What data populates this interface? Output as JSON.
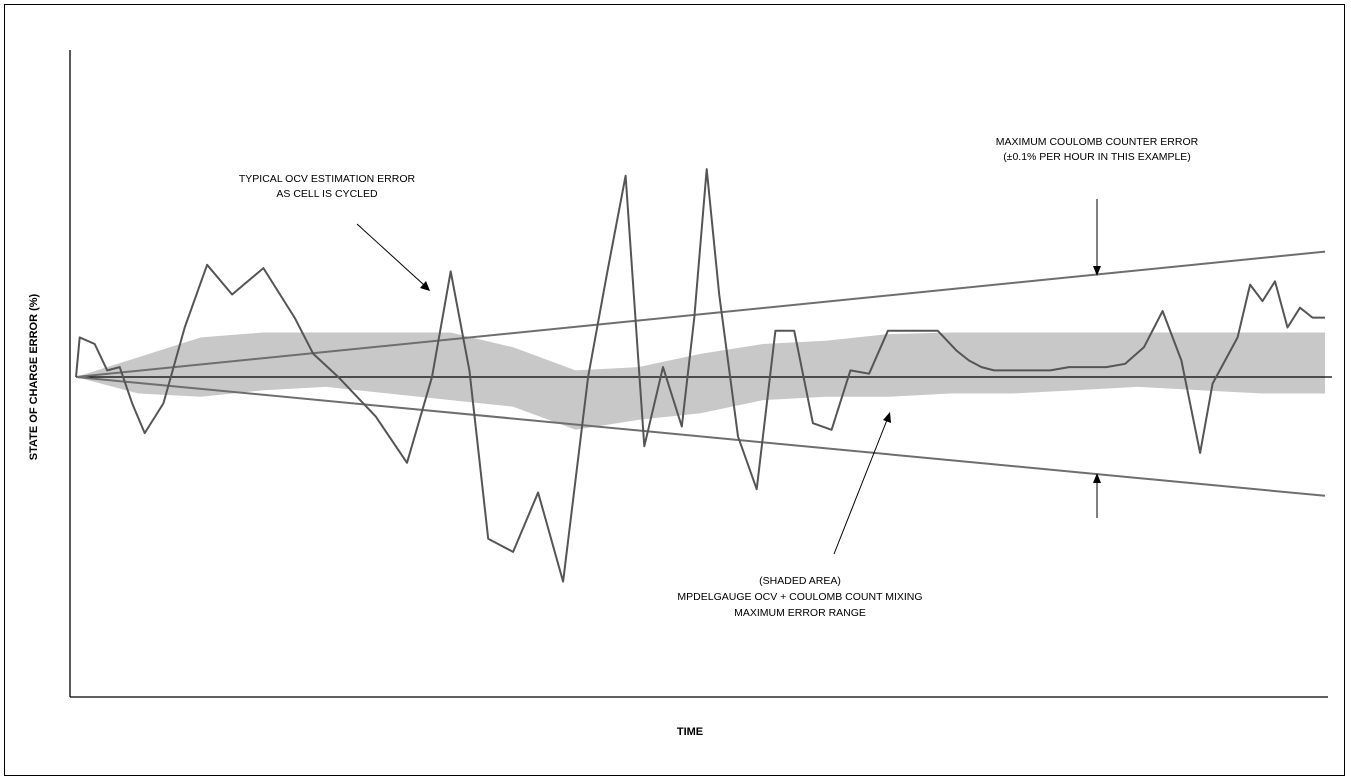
{
  "chart_data": {
    "type": "line",
    "xlabel": "TIME",
    "ylabel": "STATE OF CHARGE ERROR (%)",
    "xlim": [
      0,
      100
    ],
    "ylim": [
      -10,
      10
    ],
    "grid": false,
    "annotations": {
      "ocv": [
        "TYPICAL OCV ESTIMATION ERROR",
        "AS CELL IS CYCLED"
      ],
      "coulomb": [
        "MAXIMUM COULOMB COUNTER ERROR",
        "(±0.1% PER HOUR IN THIS EXAMPLE)"
      ],
      "shaded": [
        "(SHADED AREA)",
        "MPDELGAUGE OCV + COULOMB COUNT MIXING",
        "MAXIMUM ERROR RANGE"
      ]
    },
    "series": [
      {
        "role": "coulomb-error-bound",
        "color": "#6e6e6e",
        "x": [
          0,
          100
        ],
        "upper": [
          0,
          3.8
        ],
        "lower": [
          0,
          -3.6
        ]
      },
      {
        "role": "ocv-estimation-error",
        "color": "#555555",
        "x": [
          0,
          0.3,
          1.5,
          2.5,
          3.5,
          4.5,
          5.5,
          7,
          8.7,
          10.5,
          12.5,
          15,
          17.5,
          19,
          21,
          24,
          26.5,
          28.5,
          30,
          31.5,
          33,
          35,
          37,
          39,
          41,
          42.5,
          44,
          45.5,
          47,
          48.5,
          49.5,
          50.5,
          51.5,
          53,
          54.5,
          56,
          57.5,
          59,
          60.5,
          62,
          63.5,
          65,
          66.5,
          67.5,
          69,
          70.5,
          71.5,
          72.5,
          73.5,
          74.5,
          75.5,
          76.5,
          78,
          79.5,
          81,
          82.5,
          84,
          85.5,
          87,
          88.5,
          90,
          91,
          92,
          93,
          94,
          95,
          96,
          97,
          98,
          99,
          100
        ],
        "y": [
          0,
          1.2,
          1,
          0.2,
          0.3,
          -0.8,
          -1.7,
          -0.8,
          1.5,
          3.4,
          2.5,
          3.3,
          1.8,
          0.7,
          0,
          -1.2,
          -2.6,
          0,
          3.2,
          0.2,
          -4.9,
          -5.3,
          -3.5,
          -6.2,
          0,
          3.1,
          6.1,
          -2.1,
          0.3,
          -1.5,
          1.8,
          6.3,
          2.5,
          -1.8,
          -3.4,
          1.4,
          1.4,
          -1.4,
          -1.6,
          0.2,
          0.1,
          1.4,
          1.4,
          1.4,
          1.4,
          0.8,
          0.5,
          0.3,
          0.2,
          0.2,
          0.2,
          0.2,
          0.2,
          0.3,
          0.3,
          0.3,
          0.4,
          0.9,
          2,
          0.5,
          -2.3,
          -0.2,
          0.5,
          1.2,
          2.8,
          2.3,
          2.9,
          1.5,
          2.1,
          1.8,
          1.8
        ]
      },
      {
        "role": "shaded-max-error-range",
        "color": "#c8c8c8",
        "x": [
          0,
          5,
          10,
          15,
          20,
          25,
          30,
          35,
          40,
          45,
          50,
          55,
          60,
          65,
          70,
          75,
          80,
          85,
          90,
          95,
          100
        ],
        "upper": [
          0,
          0.6,
          1.2,
          1.35,
          1.35,
          1.35,
          1.35,
          0.9,
          0.2,
          0.3,
          0.7,
          1,
          1.1,
          1.3,
          1.35,
          1.35,
          1.35,
          1.35,
          1.35,
          1.35,
          1.35
        ],
        "lower": [
          0,
          -0.5,
          -0.6,
          -0.4,
          -0.3,
          -0.5,
          -0.7,
          -0.9,
          -1.6,
          -1.3,
          -1.1,
          -0.7,
          -0.6,
          -0.6,
          -0.5,
          -0.5,
          -0.4,
          -0.3,
          -0.4,
          -0.5,
          -0.5
        ]
      }
    ]
  }
}
